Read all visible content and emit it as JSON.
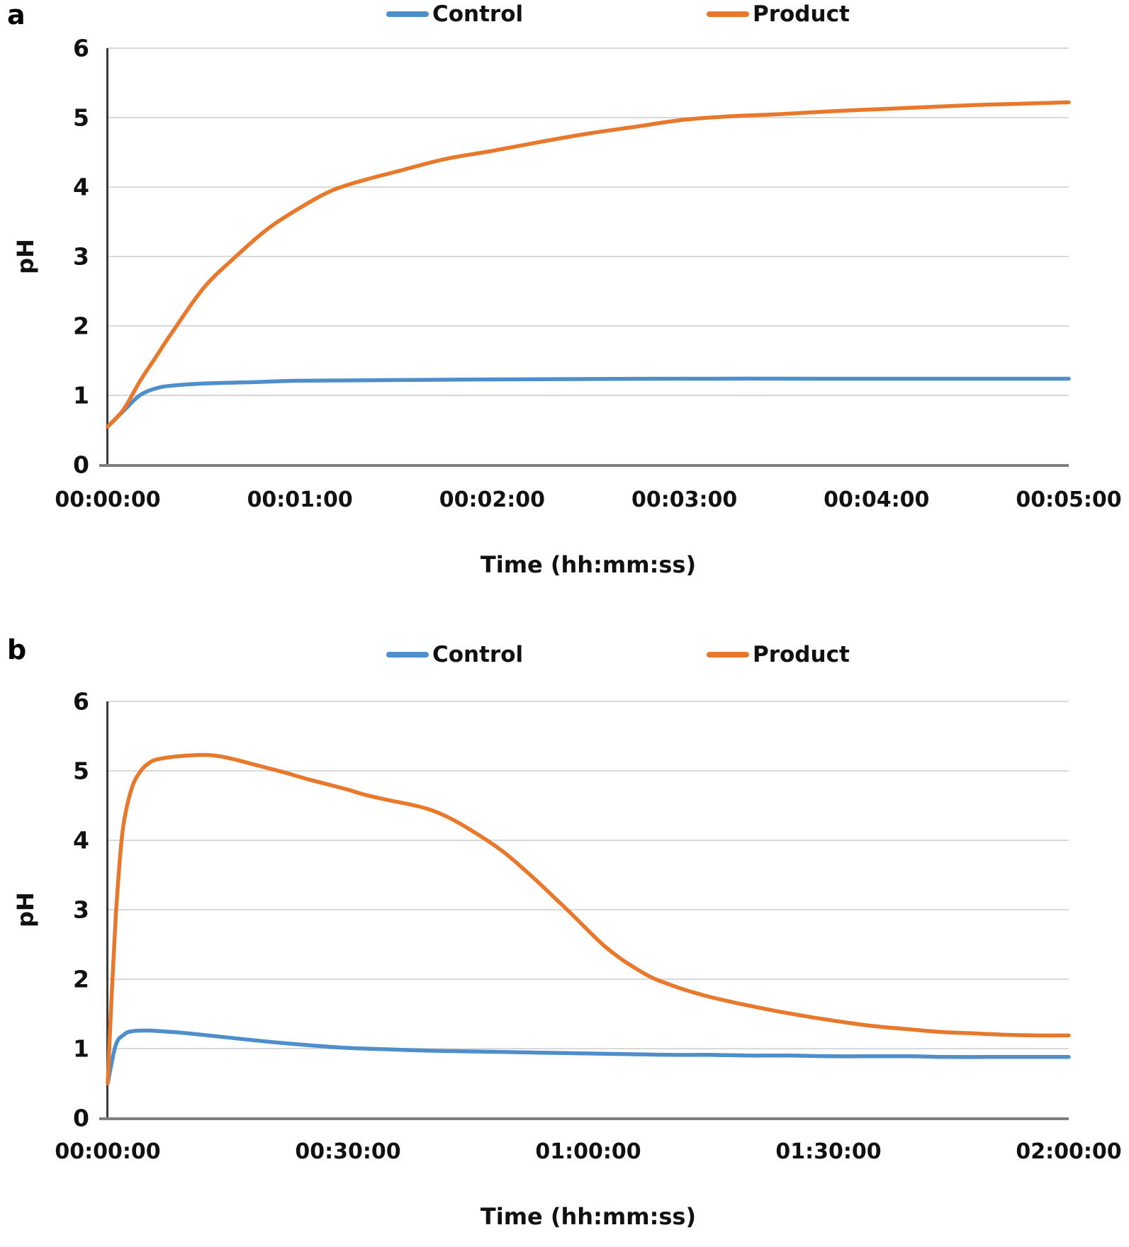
{
  "panel_a_label": "a",
  "panel_b_label": "b",
  "chart_data": [
    {
      "type": "line",
      "panel": "a",
      "title": "",
      "xlabel": "Time (hh:mm:ss)",
      "ylabel": "pH",
      "legend_position": "top",
      "grid": true,
      "ylim": [
        0,
        6
      ],
      "y_ticks": [
        0,
        1,
        2,
        3,
        4,
        5,
        6
      ],
      "xlim_seconds": [
        0,
        300
      ],
      "x_tick_labels": [
        "00:00:00",
        "00:01:00",
        "00:02:00",
        "00:03:00",
        "00:04:00",
        "00:05:00"
      ],
      "colors": {
        "grid": "#d9d9d9",
        "x_axis": "#7f7f7f",
        "y_axis": "#3a3a3a"
      },
      "series": [
        {
          "name": "Control",
          "color": "#4e8ecb",
          "points_seconds_ph": [
            [
              0,
              0.55
            ],
            [
              5,
              0.78
            ],
            [
              10,
              1.0
            ],
            [
              15,
              1.1
            ],
            [
              20,
              1.14
            ],
            [
              30,
              1.17
            ],
            [
              45,
              1.19
            ],
            [
              60,
              1.21
            ],
            [
              90,
              1.22
            ],
            [
              120,
              1.23
            ],
            [
              180,
              1.24
            ],
            [
              240,
              1.24
            ],
            [
              300,
              1.24
            ]
          ]
        },
        {
          "name": "Product",
          "color": "#e8792c",
          "points_seconds_ph": [
            [
              0,
              0.55
            ],
            [
              5,
              0.8
            ],
            [
              10,
              1.2
            ],
            [
              15,
              1.55
            ],
            [
              20,
              1.9
            ],
            [
              30,
              2.55
            ],
            [
              40,
              3.0
            ],
            [
              50,
              3.4
            ],
            [
              60,
              3.7
            ],
            [
              70,
              3.95
            ],
            [
              80,
              4.1
            ],
            [
              90,
              4.22
            ],
            [
              105,
              4.4
            ],
            [
              120,
              4.52
            ],
            [
              135,
              4.65
            ],
            [
              150,
              4.77
            ],
            [
              165,
              4.87
            ],
            [
              180,
              4.97
            ],
            [
              195,
              5.02
            ],
            [
              210,
              5.05
            ],
            [
              225,
              5.09
            ],
            [
              240,
              5.12
            ],
            [
              255,
              5.15
            ],
            [
              270,
              5.18
            ],
            [
              285,
              5.2
            ],
            [
              300,
              5.22
            ]
          ]
        }
      ]
    },
    {
      "type": "line",
      "panel": "b",
      "title": "",
      "xlabel": "Time (hh:mm:ss)",
      "ylabel": "pH",
      "legend_position": "top",
      "grid": true,
      "ylim": [
        0,
        6
      ],
      "y_ticks": [
        0,
        1,
        2,
        3,
        4,
        5,
        6
      ],
      "xlim_seconds": [
        0,
        7200
      ],
      "x_tick_labels": [
        "00:00:00",
        "00:30:00",
        "01:00:00",
        "01:30:00",
        "02:00:00"
      ],
      "colors": {
        "grid": "#d9d9d9",
        "x_axis": "#7f7f7f",
        "y_axis": "#3a3a3a"
      },
      "series": [
        {
          "name": "Control",
          "color": "#4e8ecb",
          "points_seconds_ph": [
            [
              0,
              0.5
            ],
            [
              60,
              1.05
            ],
            [
              120,
              1.2
            ],
            [
              180,
              1.25
            ],
            [
              300,
              1.26
            ],
            [
              480,
              1.24
            ],
            [
              600,
              1.22
            ],
            [
              900,
              1.16
            ],
            [
              1200,
              1.1
            ],
            [
              1500,
              1.05
            ],
            [
              1800,
              1.01
            ],
            [
              2100,
              0.99
            ],
            [
              2400,
              0.97
            ],
            [
              2700,
              0.96
            ],
            [
              3000,
              0.95
            ],
            [
              3300,
              0.94
            ],
            [
              3600,
              0.93
            ],
            [
              3900,
              0.92
            ],
            [
              4200,
              0.91
            ],
            [
              4500,
              0.91
            ],
            [
              4800,
              0.9
            ],
            [
              5100,
              0.9
            ],
            [
              5400,
              0.89
            ],
            [
              5700,
              0.89
            ],
            [
              6000,
              0.89
            ],
            [
              6300,
              0.88
            ],
            [
              6600,
              0.88
            ],
            [
              6900,
              0.88
            ],
            [
              7200,
              0.88
            ]
          ]
        },
        {
          "name": "Product",
          "color": "#e8792c",
          "points_seconds_ph": [
            [
              0,
              0.5
            ],
            [
              30,
              1.8
            ],
            [
              60,
              2.9
            ],
            [
              90,
              3.7
            ],
            [
              120,
              4.25
            ],
            [
              180,
              4.75
            ],
            [
              240,
              4.98
            ],
            [
              300,
              5.1
            ],
            [
              360,
              5.16
            ],
            [
              480,
              5.2
            ],
            [
              600,
              5.22
            ],
            [
              720,
              5.23
            ],
            [
              840,
              5.21
            ],
            [
              960,
              5.16
            ],
            [
              1080,
              5.1
            ],
            [
              1200,
              5.04
            ],
            [
              1320,
              4.98
            ],
            [
              1500,
              4.88
            ],
            [
              1680,
              4.79
            ],
            [
              1800,
              4.73
            ],
            [
              1920,
              4.66
            ],
            [
              2100,
              4.58
            ],
            [
              2280,
              4.51
            ],
            [
              2400,
              4.45
            ],
            [
              2520,
              4.36
            ],
            [
              2640,
              4.24
            ],
            [
              2760,
              4.1
            ],
            [
              2880,
              3.95
            ],
            [
              3000,
              3.78
            ],
            [
              3120,
              3.58
            ],
            [
              3240,
              3.37
            ],
            [
              3360,
              3.15
            ],
            [
              3480,
              2.93
            ],
            [
              3600,
              2.7
            ],
            [
              3720,
              2.48
            ],
            [
              3840,
              2.3
            ],
            [
              3960,
              2.15
            ],
            [
              4080,
              2.02
            ],
            [
              4200,
              1.93
            ],
            [
              4320,
              1.85
            ],
            [
              4500,
              1.75
            ],
            [
              4680,
              1.67
            ],
            [
              4800,
              1.62
            ],
            [
              5040,
              1.53
            ],
            [
              5280,
              1.45
            ],
            [
              5520,
              1.38
            ],
            [
              5760,
              1.32
            ],
            [
              6000,
              1.28
            ],
            [
              6240,
              1.24
            ],
            [
              6480,
              1.22
            ],
            [
              6720,
              1.2
            ],
            [
              6960,
              1.19
            ],
            [
              7200,
              1.19
            ]
          ]
        }
      ]
    }
  ]
}
